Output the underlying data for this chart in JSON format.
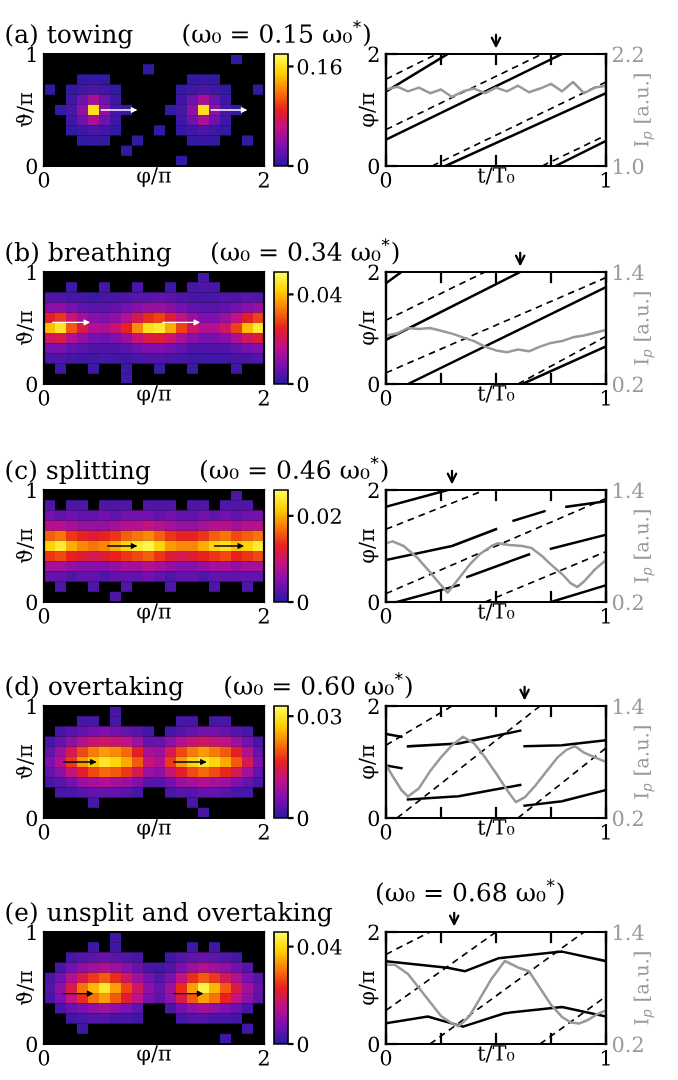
{
  "chart_data": [
    {
      "type": "heatmap",
      "title": "(a) towing",
      "xlabel": "φ/π",
      "ylabel": "ϑ/π",
      "xlim": [
        0,
        2
      ],
      "xticks": [
        0,
        2
      ],
      "ylim": [
        0,
        1
      ],
      "yticks": [
        0,
        1
      ],
      "clim": [
        0,
        0.18
      ],
      "cticks": [
        0,
        0.16
      ],
      "cells": [
        [
          null,
          null,
          null,
          null,
          null,
          null,
          null,
          null,
          null,
          null,
          null,
          null,
          null,
          null,
          null,
          null,
          null,
          0.003,
          null,
          null
        ],
        [
          null,
          null,
          null,
          null,
          null,
          null,
          null,
          null,
          null,
          0.003,
          null,
          null,
          null,
          null,
          null,
          null,
          null,
          null,
          null,
          null
        ],
        [
          null,
          null,
          null,
          0.003,
          0.005,
          0.003,
          null,
          null,
          null,
          null,
          null,
          null,
          null,
          0.003,
          0.005,
          0.003,
          null,
          null,
          null,
          null
        ],
        [
          0.004,
          null,
          0.003,
          0.008,
          0.012,
          0.008,
          0.003,
          null,
          null,
          null,
          null,
          null,
          0.003,
          0.008,
          0.012,
          0.008,
          0.003,
          null,
          null,
          0.004
        ],
        [
          null,
          null,
          0.008,
          0.025,
          0.05,
          0.025,
          0.008,
          null,
          null,
          null,
          null,
          null,
          0.008,
          0.025,
          0.05,
          0.025,
          0.008,
          null,
          null,
          null
        ],
        [
          null,
          0.005,
          0.01,
          0.04,
          0.16,
          0.04,
          0.01,
          0.005,
          null,
          null,
          null,
          0.005,
          0.01,
          0.04,
          0.16,
          0.04,
          0.01,
          0.005,
          null,
          null
        ],
        [
          null,
          null,
          0.008,
          0.025,
          0.05,
          0.025,
          0.008,
          null,
          null,
          null,
          null,
          null,
          0.008,
          0.025,
          0.05,
          0.025,
          0.008,
          null,
          null,
          null
        ],
        [
          null,
          null,
          0.003,
          0.008,
          0.012,
          0.008,
          0.003,
          null,
          null,
          null,
          0.003,
          null,
          0.003,
          0.008,
          0.012,
          0.008,
          0.003,
          null,
          null,
          null
        ],
        [
          null,
          null,
          null,
          0.003,
          0.005,
          0.003,
          null,
          null,
          0.003,
          null,
          null,
          null,
          null,
          0.003,
          0.005,
          0.003,
          null,
          null,
          0.004,
          null
        ],
        [
          null,
          null,
          null,
          null,
          null,
          null,
          null,
          0.003,
          null,
          null,
          null,
          null,
          null,
          null,
          null,
          null,
          null,
          null,
          null,
          null
        ],
        [
          null,
          null,
          null,
          null,
          null,
          null,
          null,
          null,
          null,
          null,
          null,
          null,
          0.003,
          null,
          null,
          null,
          null,
          null,
          null,
          null
        ]
      ]
    },
    {
      "type": "line",
      "title": "(ω₀ = 0.15 ω₀$^{*}$)",
      "xlabel": "t/T₀",
      "ylabel": "φ/π",
      "y2label": "I$_{p}$ [a.u.]",
      "xlim": [
        0,
        1
      ],
      "xticks": [
        0,
        {
          "value": 0.25,
          "label": null
        },
        {
          "value": 0.5,
          "label": null
        },
        {
          "value": 0.75,
          "label": null
        },
        1
      ],
      "ylim": [
        0,
        2
      ],
      "yticks": [
        0,
        2
      ],
      "y2lim": [
        1.0,
        2.2
      ],
      "y2ticks": [
        {
          "value": 1.0,
          "label": "1.0"
        },
        {
          "value": 2.2,
          "label": "2.2"
        }
      ],
      "series": [
        {
          "color": "#000000",
          "x": [
            0,
            0.28
          ],
          "values": [
            1.33,
            2
          ]
        },
        {
          "color": "#000000",
          "x": [
            0,
            0.8
          ],
          "values": [
            0.47,
            2
          ]
        },
        {
          "color": "#000000",
          "x": [
            0.27,
            1
          ],
          "values": [
            0,
            1.3
          ]
        },
        {
          "color": "#000000",
          "x": [
            0.77,
            1
          ],
          "values": [
            0,
            0.45
          ]
        },
        {
          "color": "#000000",
          "line_style": "dashed",
          "x": [
            0,
            0.23
          ],
          "values": [
            1.55,
            2
          ]
        },
        {
          "color": "#000000",
          "line_style": "dashed",
          "x": [
            0,
            0.71
          ],
          "values": [
            0.65,
            2
          ]
        },
        {
          "color": "#000000",
          "line_style": "dashed",
          "x": [
            0.21,
            1
          ],
          "values": [
            0,
            1.5
          ]
        },
        {
          "color": "#000000",
          "line_style": "dashed",
          "x": [
            0.71,
            1
          ],
          "values": [
            0,
            0.55
          ]
        },
        {
          "color": "#999999",
          "axis": "y2",
          "x": [
            0,
            0.05,
            0.1,
            0.15,
            0.2,
            0.25,
            0.3,
            0.35,
            0.4,
            0.45,
            0.5,
            0.55,
            0.6,
            0.65,
            0.7,
            0.75,
            0.8,
            0.85,
            0.9,
            0.95,
            1
          ],
          "values": [
            1.82,
            1.85,
            1.8,
            1.84,
            1.78,
            1.82,
            1.74,
            1.8,
            1.83,
            1.78,
            1.84,
            1.8,
            1.86,
            1.79,
            1.83,
            1.88,
            1.8,
            1.9,
            1.78,
            1.84,
            1.86
          ]
        }
      ]
    },
    {
      "type": "heatmap",
      "title": "(b) breathing",
      "xlabel": "φ/π",
      "ylabel": "ϑ/π",
      "xlim": [
        0,
        2
      ],
      "xticks": [
        0,
        2
      ],
      "ylim": [
        0,
        1
      ],
      "yticks": [
        0,
        1
      ],
      "clim": [
        0,
        0.05
      ],
      "cticks": [
        0,
        0.04
      ],
      "cells": [
        [
          null,
          null,
          null,
          null,
          null,
          null,
          null,
          null,
          null,
          null,
          null,
          null,
          null,
          null,
          0.003,
          null,
          null,
          null,
          null,
          null
        ],
        [
          null,
          null,
          0.002,
          null,
          null,
          0.003,
          null,
          null,
          0.003,
          null,
          null,
          0.002,
          null,
          0.003,
          0.004,
          0.003,
          null,
          null,
          null,
          null
        ],
        [
          0.004,
          0.004,
          0.003,
          0.003,
          0.002,
          0.003,
          0.003,
          0.004,
          0.005,
          0.005,
          0.006,
          0.005,
          0.004,
          0.003,
          0.003,
          0.003,
          0.004,
          0.004,
          0.005,
          0.004
        ],
        [
          0.01,
          0.011,
          0.008,
          0.006,
          0.005,
          0.005,
          0.006,
          0.008,
          0.01,
          0.012,
          0.012,
          0.01,
          0.008,
          0.006,
          0.005,
          0.005,
          0.006,
          0.008,
          0.01,
          0.012
        ],
        [
          0.024,
          0.027,
          0.018,
          0.013,
          0.01,
          0.009,
          0.011,
          0.015,
          0.021,
          0.026,
          0.028,
          0.023,
          0.017,
          0.012,
          0.009,
          0.009,
          0.012,
          0.017,
          0.024,
          0.028
        ],
        [
          0.04,
          0.045,
          0.03,
          0.022,
          0.015,
          0.014,
          0.018,
          0.025,
          0.035,
          0.044,
          0.046,
          0.038,
          0.028,
          0.02,
          0.015,
          0.015,
          0.02,
          0.028,
          0.04,
          0.046
        ],
        [
          0.02,
          0.022,
          0.015,
          0.011,
          0.008,
          0.007,
          0.009,
          0.012,
          0.018,
          0.022,
          0.023,
          0.019,
          0.014,
          0.01,
          0.008,
          0.008,
          0.01,
          0.014,
          0.02,
          0.023
        ],
        [
          0.008,
          0.009,
          0.006,
          0.005,
          0.004,
          0.004,
          0.004,
          0.005,
          0.007,
          0.009,
          0.009,
          0.008,
          0.006,
          0.004,
          0.004,
          0.004,
          0.004,
          0.006,
          0.008,
          0.009
        ],
        [
          0.003,
          0.004,
          0.003,
          0.002,
          0.002,
          0.003,
          0.002,
          0.002,
          0.003,
          0.004,
          0.004,
          0.003,
          0.003,
          0.002,
          0.002,
          0.002,
          0.002,
          0.003,
          0.003,
          0.004
        ],
        [
          null,
          0.002,
          null,
          null,
          0.002,
          null,
          null,
          0.002,
          null,
          null,
          0.002,
          null,
          null,
          0.002,
          null,
          null,
          null,
          0.002,
          null,
          null
        ],
        [
          null,
          null,
          null,
          null,
          null,
          null,
          null,
          0.002,
          null,
          null,
          null,
          null,
          null,
          null,
          null,
          null,
          null,
          null,
          null,
          null
        ]
      ]
    },
    {
      "type": "line",
      "title": "(ω₀ = 0.34 ω₀$^{*}$)",
      "xlabel": "t/T₀",
      "ylabel": "φ/π",
      "y2label": "I$_{p}$ [a.u.]",
      "xlim": [
        0,
        1
      ],
      "xticks": [
        0,
        {
          "value": 0.25,
          "label": null
        },
        {
          "value": 0.5,
          "label": null
        },
        {
          "value": 0.75,
          "label": null
        },
        1
      ],
      "ylim": [
        0,
        2
      ],
      "yticks": [
        0,
        2
      ],
      "y2lim": [
        0.2,
        1.4
      ],
      "y2ticks": [
        {
          "value": 0.2,
          "label": "0.2"
        },
        {
          "value": 1.4,
          "label": "1.4"
        }
      ],
      "series": [
        {
          "color": "#000000",
          "x": [
            0,
            0.07
          ],
          "values": [
            1.8,
            2
          ]
        },
        {
          "color": "#000000",
          "x": [
            0,
            0.61
          ],
          "values": [
            0.79,
            2
          ]
        },
        {
          "color": "#000000",
          "x": [
            0.1,
            1
          ],
          "values": [
            0,
            1.73
          ]
        },
        {
          "color": "#000000",
          "x": [
            0.62,
            1
          ],
          "values": [
            0,
            0.67
          ]
        },
        {
          "color": "#000000",
          "line_style": "dashed",
          "x": [
            0,
            0.45
          ],
          "values": [
            1.14,
            2
          ]
        },
        {
          "color": "#000000",
          "line_style": "dashed",
          "x": [
            0,
            1
          ],
          "values": [
            0.2,
            1.9
          ]
        },
        {
          "color": "#000000",
          "line_style": "dashed",
          "x": [
            0.6,
            1
          ],
          "values": [
            0,
            0.85
          ]
        },
        {
          "color": "#999999",
          "axis": "y2",
          "x": [
            0,
            0.05,
            0.1,
            0.15,
            0.2,
            0.25,
            0.3,
            0.35,
            0.4,
            0.45,
            0.5,
            0.55,
            0.6,
            0.65,
            0.7,
            0.75,
            0.8,
            0.85,
            0.9,
            0.95,
            1
          ],
          "values": [
            0.72,
            0.74,
            0.8,
            0.79,
            0.8,
            0.77,
            0.74,
            0.7,
            0.66,
            0.6,
            0.56,
            0.54,
            0.57,
            0.55,
            0.6,
            0.64,
            0.66,
            0.7,
            0.72,
            0.75,
            0.78
          ]
        }
      ]
    },
    {
      "type": "heatmap",
      "title": "(c) splitting",
      "xlabel": "φ/π",
      "ylabel": "ϑ/π",
      "xlim": [
        0,
        2
      ],
      "xticks": [
        0,
        2
      ],
      "ylim": [
        0,
        1
      ],
      "yticks": [
        0,
        1
      ],
      "clim": [
        0,
        0.026
      ],
      "cticks": [
        0,
        0.02
      ],
      "cells": [
        [
          null,
          null,
          null,
          null,
          null,
          null,
          null,
          null,
          null,
          null,
          null,
          null,
          null,
          null,
          null,
          null,
          null,
          0.002,
          null,
          null
        ],
        [
          0.002,
          null,
          0.002,
          0.002,
          null,
          0.002,
          0.002,
          0.002,
          null,
          0.002,
          0.002,
          0.002,
          null,
          0.002,
          0.002,
          null,
          0.002,
          0.002,
          0.002,
          null
        ],
        [
          0.004,
          0.003,
          0.004,
          0.003,
          0.003,
          0.004,
          0.003,
          0.004,
          0.004,
          0.004,
          0.003,
          0.004,
          0.003,
          0.003,
          0.004,
          0.003,
          0.004,
          0.003,
          0.004,
          0.004
        ],
        [
          0.008,
          0.008,
          0.007,
          0.006,
          0.006,
          0.006,
          0.007,
          0.008,
          0.008,
          0.009,
          0.008,
          0.007,
          0.006,
          0.006,
          0.007,
          0.008,
          0.008,
          0.007,
          0.008,
          0.008
        ],
        [
          0.016,
          0.017,
          0.014,
          0.013,
          0.012,
          0.013,
          0.014,
          0.016,
          0.017,
          0.018,
          0.016,
          0.014,
          0.013,
          0.013,
          0.014,
          0.016,
          0.017,
          0.015,
          0.016,
          0.017
        ],
        [
          0.022,
          0.024,
          0.02,
          0.018,
          0.017,
          0.018,
          0.02,
          0.022,
          0.024,
          0.025,
          0.022,
          0.019,
          0.018,
          0.018,
          0.02,
          0.022,
          0.023,
          0.021,
          0.022,
          0.024
        ],
        [
          0.014,
          0.015,
          0.013,
          0.012,
          0.011,
          0.012,
          0.013,
          0.014,
          0.015,
          0.016,
          0.014,
          0.012,
          0.011,
          0.012,
          0.013,
          0.014,
          0.015,
          0.013,
          0.014,
          0.015
        ],
        [
          0.007,
          0.007,
          0.006,
          0.005,
          0.005,
          0.005,
          0.006,
          0.007,
          0.007,
          0.008,
          0.007,
          0.006,
          0.005,
          0.005,
          0.006,
          0.007,
          0.007,
          0.006,
          0.007,
          0.007
        ],
        [
          0.003,
          0.003,
          0.002,
          0.003,
          0.003,
          0.002,
          0.003,
          0.003,
          0.003,
          0.004,
          0.003,
          0.002,
          0.003,
          0.003,
          0.002,
          0.003,
          0.003,
          0.003,
          0.003,
          0.003
        ],
        [
          null,
          0.002,
          null,
          null,
          0.002,
          null,
          null,
          0.002,
          null,
          null,
          null,
          0.002,
          null,
          null,
          null,
          0.002,
          null,
          null,
          0.002,
          null
        ],
        [
          null,
          null,
          null,
          null,
          null,
          null,
          0.002,
          null,
          null,
          null,
          null,
          null,
          null,
          null,
          null,
          null,
          null,
          null,
          null,
          null
        ]
      ]
    },
    {
      "type": "line",
      "title": "(ω₀ = 0.46 ω₀$^{*}$)",
      "xlabel": "t/T₀",
      "ylabel": "φ/π",
      "y2label": "I$_{p}$ [a.u.]",
      "xlim": [
        0,
        1
      ],
      "xticks": [
        0,
        {
          "value": 0.25,
          "label": null
        },
        {
          "value": 0.5,
          "label": null
        },
        {
          "value": 0.75,
          "label": null
        },
        1
      ],
      "ylim": [
        0,
        2
      ],
      "yticks": [
        0,
        2
      ],
      "y2lim": [
        0.2,
        1.4
      ],
      "y2ticks": [
        {
          "value": 0.2,
          "label": "0.2"
        },
        {
          "value": 1.4,
          "label": "1.4"
        }
      ],
      "series": [
        {
          "color": "#000000",
          "x": [
            0,
            0.28
          ],
          "values": [
            1.7,
            2
          ]
        },
        {
          "color": "#000000",
          "x": [
            0,
            0.3,
            0.5
          ],
          "values": [
            0.75,
            1.0,
            1.3
          ]
        },
        {
          "color": "#000000",
          "x": [
            0.58,
            0.72
          ],
          "values": [
            1.45,
            1.62
          ]
        },
        {
          "color": "#000000",
          "x": [
            0.82,
            1
          ],
          "values": [
            1.7,
            1.8
          ]
        },
        {
          "color": "#000000",
          "x": [
            0.05,
            0.33
          ],
          "values": [
            0,
            0.3
          ]
        },
        {
          "color": "#000000",
          "x": [
            0.37,
            0.65
          ],
          "values": [
            0.45,
            0.85
          ]
        },
        {
          "color": "#000000",
          "x": [
            0.75,
            1
          ],
          "values": [
            0.95,
            1.2
          ]
        },
        {
          "color": "#000000",
          "x": [
            0.75,
            1
          ],
          "values": [
            0,
            0.3
          ]
        },
        {
          "color": "#000000",
          "line_style": "dashed",
          "x": [
            0,
            0.45
          ],
          "values": [
            1.3,
            2
          ]
        },
        {
          "color": "#000000",
          "line_style": "dashed",
          "x": [
            0,
            1
          ],
          "values": [
            0.15,
            1.85
          ]
        },
        {
          "color": "#000000",
          "line_style": "dashed",
          "x": [
            0.45,
            1
          ],
          "values": [
            0,
            0.9
          ]
        },
        {
          "color": "#999999",
          "axis": "y2",
          "x": [
            0,
            0.03,
            0.08,
            0.14,
            0.2,
            0.25,
            0.28,
            0.33,
            0.38,
            0.43,
            0.48,
            0.51,
            0.56,
            0.62,
            0.66,
            0.71,
            0.75,
            0.8,
            0.84,
            0.87,
            0.9,
            0.95,
            1
          ],
          "values": [
            0.83,
            0.85,
            0.8,
            0.68,
            0.52,
            0.38,
            0.3,
            0.45,
            0.6,
            0.72,
            0.8,
            0.83,
            0.81,
            0.8,
            0.78,
            0.69,
            0.6,
            0.5,
            0.4,
            0.36,
            0.42,
            0.55,
            0.65
          ]
        }
      ]
    },
    {
      "type": "heatmap",
      "title": "(d) overtaking",
      "xlabel": "φ/π",
      "ylabel": "ϑ/π",
      "xlim": [
        0,
        2
      ],
      "xticks": [
        0,
        2
      ],
      "ylim": [
        0,
        1
      ],
      "yticks": [
        0,
        1
      ],
      "clim": [
        0,
        0.033
      ],
      "cticks": [
        0,
        0.03
      ],
      "cells": [
        [
          null,
          null,
          null,
          null,
          null,
          null,
          0.002,
          null,
          null,
          null,
          null,
          null,
          null,
          null,
          null,
          null,
          null,
          null,
          null,
          null
        ],
        [
          null,
          null,
          null,
          0.002,
          0.002,
          null,
          0.002,
          null,
          null,
          null,
          null,
          null,
          0.002,
          0.002,
          null,
          0.002,
          0.002,
          null,
          null,
          null
        ],
        [
          null,
          0.002,
          0.003,
          0.004,
          0.005,
          0.006,
          0.005,
          0.004,
          0.003,
          0.002,
          null,
          0.002,
          0.003,
          0.004,
          0.005,
          0.005,
          0.004,
          0.003,
          0.002,
          null
        ],
        [
          0.002,
          0.004,
          0.007,
          0.01,
          0.012,
          0.013,
          0.012,
          0.011,
          0.008,
          0.004,
          0.004,
          0.007,
          0.01,
          0.012,
          0.013,
          0.012,
          0.011,
          0.008,
          0.005,
          0.002
        ],
        [
          0.004,
          0.008,
          0.014,
          0.019,
          0.022,
          0.024,
          0.023,
          0.021,
          0.016,
          0.009,
          0.008,
          0.014,
          0.019,
          0.022,
          0.024,
          0.022,
          0.02,
          0.016,
          0.01,
          0.004
        ],
        [
          0.006,
          0.01,
          0.018,
          0.024,
          0.027,
          0.03,
          0.028,
          0.025,
          0.02,
          0.012,
          0.01,
          0.018,
          0.024,
          0.028,
          0.03,
          0.028,
          0.025,
          0.02,
          0.014,
          0.006
        ],
        [
          0.004,
          0.007,
          0.012,
          0.016,
          0.019,
          0.021,
          0.02,
          0.018,
          0.014,
          0.008,
          0.007,
          0.012,
          0.016,
          0.019,
          0.021,
          0.019,
          0.017,
          0.014,
          0.009,
          0.004
        ],
        [
          0.002,
          0.003,
          0.005,
          0.008,
          0.009,
          0.01,
          0.009,
          0.008,
          0.006,
          0.003,
          0.003,
          0.005,
          0.008,
          0.009,
          0.01,
          0.009,
          0.008,
          0.006,
          0.004,
          0.002
        ],
        [
          null,
          0.002,
          0.002,
          0.003,
          0.004,
          0.004,
          0.004,
          0.003,
          0.002,
          null,
          null,
          0.002,
          0.003,
          0.003,
          0.004,
          0.004,
          0.003,
          0.002,
          0.002,
          null
        ],
        [
          null,
          null,
          null,
          null,
          0.002,
          null,
          null,
          null,
          null,
          null,
          null,
          null,
          null,
          0.002,
          null,
          null,
          null,
          null,
          null,
          null
        ],
        [
          null,
          null,
          null,
          null,
          null,
          null,
          null,
          null,
          null,
          null,
          null,
          null,
          null,
          null,
          0.002,
          null,
          null,
          null,
          null,
          null
        ]
      ]
    },
    {
      "type": "line",
      "title": "(ω₀ = 0.60 ω₀$^{*}$)",
      "xlabel": "t/T₀",
      "ylabel": "φ/π",
      "y2label": "I$_{p}$ [a.u.]",
      "xlim": [
        0,
        1
      ],
      "xticks": [
        0,
        {
          "value": 0.25,
          "label": null
        },
        {
          "value": 0.5,
          "label": null
        },
        {
          "value": 0.75,
          "label": null
        },
        1
      ],
      "ylim": [
        0,
        2
      ],
      "yticks": [
        0,
        2
      ],
      "y2lim": [
        0.2,
        1.4
      ],
      "y2ticks": [
        {
          "value": 0.2,
          "label": "0.2"
        },
        {
          "value": 1.4,
          "label": "1.4"
        }
      ],
      "series": [
        {
          "color": "#000000",
          "x": [
            0,
            0.07
          ],
          "values": [
            1.5,
            1.45
          ]
        },
        {
          "color": "#000000",
          "x": [
            0.1,
            0.33,
            0.61
          ],
          "values": [
            1.28,
            1.33,
            1.56
          ]
        },
        {
          "color": "#000000",
          "x": [
            0.63,
            0.8,
            1
          ],
          "values": [
            1.28,
            1.3,
            1.39
          ]
        },
        {
          "color": "#000000",
          "x": [
            0,
            0.07
          ],
          "values": [
            0.94,
            0.89
          ]
        },
        {
          "color": "#000000",
          "x": [
            0.1,
            0.33,
            0.61
          ],
          "values": [
            0.33,
            0.39,
            0.59
          ]
        },
        {
          "color": "#000000",
          "x": [
            0.63,
            0.8,
            1
          ],
          "values": [
            0.22,
            0.3,
            0.5
          ]
        },
        {
          "color": "#000000",
          "line_style": "dashed",
          "x": [
            0,
            0.3
          ],
          "values": [
            1.3,
            2
          ]
        },
        {
          "color": "#000000",
          "line_style": "dashed",
          "x": [
            0.05,
            0.7
          ],
          "values": [
            0,
            2
          ]
        },
        {
          "color": "#000000",
          "line_style": "dashed",
          "x": [
            0.6,
            1
          ],
          "values": [
            0,
            1.25
          ]
        },
        {
          "color": "#999999",
          "axis": "y2",
          "x": [
            0,
            0.03,
            0.07,
            0.1,
            0.15,
            0.2,
            0.25,
            0.3,
            0.35,
            0.4,
            0.45,
            0.5,
            0.55,
            0.59,
            0.63,
            0.68,
            0.73,
            0.78,
            0.82,
            0.86,
            0.9,
            0.95,
            1
          ],
          "values": [
            0.77,
            0.65,
            0.5,
            0.43,
            0.52,
            0.7,
            0.85,
            0.98,
            1.07,
            1.0,
            0.85,
            0.68,
            0.5,
            0.37,
            0.42,
            0.55,
            0.7,
            0.85,
            0.93,
            0.97,
            0.9,
            0.85,
            0.8
          ]
        }
      ]
    },
    {
      "type": "heatmap",
      "title": "(e) unsplit and overtaking",
      "xlabel": "φ/π",
      "ylabel": "ϑ/π",
      "xlim": [
        0,
        2
      ],
      "xticks": [
        0,
        2
      ],
      "ylim": [
        0,
        1
      ],
      "yticks": [
        0,
        1
      ],
      "clim": [
        0,
        0.046
      ],
      "cticks": [
        0,
        0.04
      ],
      "cells": [
        [
          null,
          null,
          null,
          null,
          null,
          null,
          0.002,
          null,
          null,
          null,
          null,
          null,
          null,
          null,
          null,
          null,
          null,
          null,
          null,
          null
        ],
        [
          null,
          null,
          null,
          null,
          0.002,
          null,
          0.002,
          null,
          null,
          null,
          null,
          null,
          null,
          0.002,
          null,
          0.002,
          null,
          null,
          null,
          null
        ],
        [
          null,
          null,
          0.003,
          0.004,
          0.005,
          0.006,
          0.005,
          0.004,
          0.003,
          null,
          null,
          0.002,
          0.004,
          0.005,
          0.006,
          0.005,
          0.004,
          0.003,
          null,
          null
        ],
        [
          null,
          0.003,
          0.007,
          0.01,
          0.012,
          0.014,
          0.012,
          0.009,
          0.006,
          0.003,
          0.002,
          0.004,
          0.008,
          0.012,
          0.014,
          0.012,
          0.01,
          0.007,
          0.004,
          null
        ],
        [
          0.003,
          0.007,
          0.014,
          0.02,
          0.025,
          0.028,
          0.024,
          0.018,
          0.012,
          0.007,
          0.004,
          0.008,
          0.016,
          0.024,
          0.028,
          0.025,
          0.019,
          0.014,
          0.008,
          0.004
        ],
        [
          0.004,
          0.01,
          0.02,
          0.03,
          0.036,
          0.042,
          0.034,
          0.026,
          0.018,
          0.01,
          0.006,
          0.012,
          0.024,
          0.034,
          0.044,
          0.036,
          0.028,
          0.02,
          0.012,
          0.006
        ],
        [
          0.003,
          0.008,
          0.016,
          0.024,
          0.03,
          0.034,
          0.028,
          0.022,
          0.015,
          0.008,
          0.005,
          0.01,
          0.02,
          0.028,
          0.034,
          0.03,
          0.023,
          0.016,
          0.01,
          0.005
        ],
        [
          null,
          0.003,
          0.006,
          0.008,
          0.01,
          0.012,
          0.01,
          0.008,
          0.005,
          null,
          null,
          0.003,
          0.007,
          0.01,
          0.012,
          0.01,
          0.008,
          0.006,
          0.003,
          null
        ],
        [
          null,
          null,
          0.002,
          0.003,
          0.004,
          0.004,
          0.003,
          0.003,
          0.002,
          null,
          null,
          null,
          0.003,
          0.004,
          0.004,
          0.003,
          0.003,
          0.002,
          null,
          null
        ],
        [
          null,
          null,
          null,
          0.002,
          null,
          null,
          null,
          null,
          null,
          null,
          null,
          null,
          null,
          null,
          null,
          null,
          null,
          null,
          0.002,
          null
        ],
        [
          null,
          null,
          null,
          null,
          null,
          null,
          null,
          null,
          null,
          null,
          null,
          null,
          null,
          null,
          null,
          null,
          0.002,
          null,
          null,
          null
        ]
      ]
    },
    {
      "type": "line",
      "title": "(ω₀ = 0.68 ω₀$^{*}$)",
      "xlabel": "t/T₀",
      "ylabel": "φ/π",
      "y2label": "I$_{p}$ [a.u.]",
      "xlim": [
        0,
        1
      ],
      "xticks": [
        0,
        {
          "value": 0.25,
          "label": null
        },
        {
          "value": 0.5,
          "label": null
        },
        {
          "value": 0.75,
          "label": null
        },
        1
      ],
      "ylim": [
        0,
        2
      ],
      "yticks": [
        0,
        2
      ],
      "y2lim": [
        0.2,
        1.4
      ],
      "y2ticks": [
        {
          "value": 0.2,
          "label": "0.2"
        },
        {
          "value": 1.4,
          "label": "1.4"
        }
      ],
      "series": [
        {
          "color": "#000000",
          "x": [
            0,
            0.28,
            0.36,
            0.51,
            0.8,
            1
          ],
          "values": [
            1.48,
            1.36,
            1.3,
            1.53,
            1.65,
            1.48
          ]
        },
        {
          "color": "#000000",
          "x": [
            0,
            0.19,
            0.35,
            0.54,
            0.8,
            1
          ],
          "values": [
            0.37,
            0.49,
            0.31,
            0.55,
            0.66,
            0.49
          ]
        },
        {
          "color": "#000000",
          "line_style": "dashed",
          "x": [
            0,
            0.2
          ],
          "values": [
            1.6,
            2
          ]
        },
        {
          "color": "#000000",
          "line_style": "dashed",
          "x": [
            0,
            0.5
          ],
          "values": [
            0.6,
            2
          ]
        },
        {
          "color": "#000000",
          "line_style": "dashed",
          "x": [
            0.2,
            0.9
          ],
          "values": [
            0,
            2
          ]
        },
        {
          "color": "#000000",
          "line_style": "dashed",
          "x": [
            0.7,
            1
          ],
          "values": [
            0,
            0.85
          ]
        },
        {
          "color": "#999999",
          "axis": "y2",
          "x": [
            0,
            0.04,
            0.1,
            0.15,
            0.2,
            0.25,
            0.3,
            0.33,
            0.38,
            0.43,
            0.48,
            0.54,
            0.6,
            0.65,
            0.7,
            0.75,
            0.8,
            0.84,
            0.88,
            0.92,
            0.96,
            1
          ],
          "values": [
            1.05,
            1.05,
            0.95,
            0.8,
            0.65,
            0.5,
            0.42,
            0.39,
            0.5,
            0.7,
            0.9,
            1.09,
            1.02,
            0.98,
            0.8,
            0.62,
            0.49,
            0.43,
            0.42,
            0.46,
            0.52,
            0.56
          ]
        }
      ]
    }
  ]
}
